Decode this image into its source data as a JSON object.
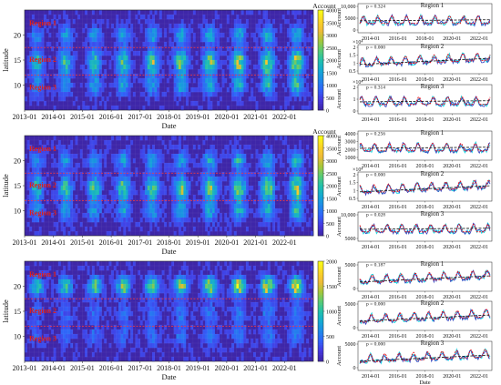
{
  "heatmaps": [
    {
      "id": "top",
      "ylabel": "latitude",
      "xlabel": "Date",
      "colorbar_title": "Account",
      "colorbar_max": 4000,
      "colorbar_ticks": [
        0,
        500,
        1000,
        1500,
        2000,
        2500,
        3000,
        3500,
        4000
      ],
      "xticks": [
        "2013-01",
        "2014-01",
        "2015-01",
        "2016-01",
        "2017-01",
        "2018-01",
        "2019-01",
        "2020-01",
        "2021-01",
        "2022-01"
      ],
      "yticks": [
        20,
        15,
        10
      ],
      "regions": [
        "Region 1",
        "Region 2",
        "Region 3"
      ]
    },
    {
      "id": "middle",
      "ylabel": "latitude",
      "xlabel": "Date",
      "colorbar_title": "Account",
      "colorbar_max": 4000,
      "colorbar_ticks": [
        0,
        500,
        1000,
        1500,
        2000,
        2500,
        3000,
        3500,
        4000
      ],
      "xticks": [
        "2013-01",
        "2014-01",
        "2015-01",
        "2016-01",
        "2017-01",
        "2018-01",
        "2019-01",
        "2020-01",
        "2021-01",
        "2022-01"
      ],
      "yticks": [
        20,
        15,
        10
      ],
      "regions": [
        "Region 1",
        "Region 2",
        "Region 3"
      ]
    },
    {
      "id": "bottom",
      "ylabel": "latitude",
      "xlabel": "Date",
      "colorbar_title": "",
      "colorbar_max": 2000,
      "colorbar_ticks": [
        0,
        500,
        1000,
        1500,
        2000
      ],
      "xticks": [
        "2013-01",
        "2014-01",
        "2015-01",
        "2016-01",
        "2017-01",
        "2018-01",
        "2019-01",
        "2020-01",
        "2021-01",
        "2022-01"
      ],
      "yticks": [
        20,
        15,
        10
      ],
      "regions": [
        "Region 1",
        "Region 2",
        "Region 3"
      ]
    }
  ],
  "minicharts": [
    {
      "title": "Region 1",
      "p": "p = 0.324",
      "ylabel": "Account",
      "ticks": [
        "10,000",
        "5000",
        "0"
      ],
      "exp": "",
      "xticks": [
        "2014-01",
        "2016-01",
        "2018-01",
        "2020-01",
        "2022-01"
      ],
      "xlabel": ""
    },
    {
      "title": "Region 2",
      "p": "p = 0.000",
      "ylabel": "Account",
      "ticks": [
        "2",
        "1.5",
        "1",
        "0.5"
      ],
      "exp": "×10⁴",
      "xticks": [
        "2014-01",
        "2016-01",
        "2018-01",
        "2020-01",
        "2022-01"
      ],
      "xlabel": ""
    },
    {
      "title": "Region 3",
      "p": "p = 0.314",
      "ylabel": "Account",
      "ticks": [
        "2",
        "1",
        "0"
      ],
      "exp": "×10⁴",
      "xticks": [
        "2014-01",
        "2016-01",
        "2018-01",
        "2020-01",
        "2022-01"
      ],
      "xlabel": ""
    },
    {
      "title": "Region 1",
      "p": "p = 0.256",
      "ylabel": "Account",
      "ticks": [
        "4000",
        "3000",
        "2000",
        "1000"
      ],
      "exp": "",
      "xticks": [
        "2014-01",
        "2016-01",
        "2018-01",
        "2020-01",
        "2022-01"
      ],
      "xlabel": ""
    },
    {
      "title": "Region 2",
      "p": "p = 0.000",
      "ylabel": "Account",
      "ticks": [
        "2",
        "1.5",
        "1",
        "0.5"
      ],
      "exp": "×10⁴",
      "xticks": [
        "2014-01",
        "2016-01",
        "2018-01",
        "2020-01",
        "2022-01"
      ],
      "xlabel": ""
    },
    {
      "title": "Region 3",
      "p": "p = 0.028",
      "ylabel": "Account",
      "ticks": [
        "10,000",
        "5000"
      ],
      "exp": "",
      "xticks": [
        "2014-01",
        "2016-01",
        "2018-01",
        "2020-01",
        "2022-01"
      ],
      "xlabel": ""
    },
    {
      "title": "Region 1",
      "p": "p = 0.187",
      "ylabel": "Account",
      "ticks": [
        "5000",
        "0"
      ],
      "exp": "",
      "xticks": [
        "2014-01",
        "2016-01",
        "2018-01",
        "2020-01",
        "2022-01"
      ],
      "xlabel": ""
    },
    {
      "title": "Region 2",
      "p": "p = 0.000",
      "ylabel": "Account",
      "ticks": [
        "5000",
        "0"
      ],
      "exp": "",
      "xticks": [
        "2014-01",
        "2016-01",
        "2018-01",
        "2020-01",
        "2022-01"
      ],
      "xlabel": ""
    },
    {
      "title": "Region 3",
      "p": "p = 0.000",
      "ylabel": "Account",
      "ticks": [
        "5000",
        "0"
      ],
      "exp": "",
      "xticks": [
        "2014-01",
        "2016-01",
        "2018-01",
        "2020-01",
        "2022-01"
      ],
      "xlabel": "Date"
    }
  ],
  "chart_data": {
    "type": "heatmap",
    "title": "",
    "xlabel": "Date",
    "ylabel": "latitude",
    "xlim": [
      "2013-01",
      "2022-12"
    ],
    "ylim": [
      5,
      25
    ],
    "colorbar_label": "Account",
    "series_colors": {
      "observed": "#2f3fbf",
      "fit": "#e3131b",
      "trend": "#111111",
      "band": "#19d9e6"
    },
    "colormap": [
      "#3e26a8",
      "#4538e0",
      "#3163fa",
      "#1e8ae8",
      "#13abd2",
      "#21c1ab",
      "#59cb74",
      "#a7c739",
      "#f0ba37",
      "#fad525",
      "#f9fb15"
    ]
  }
}
